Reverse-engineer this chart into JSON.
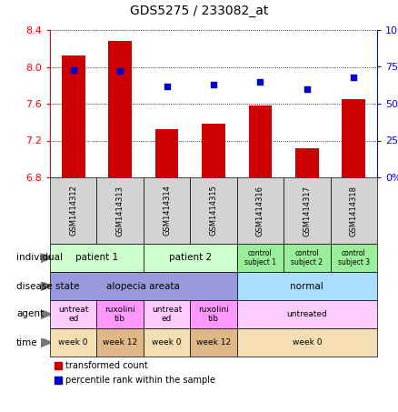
{
  "title": "GDS5275 / 233082_at",
  "samples": [
    "GSM1414312",
    "GSM1414313",
    "GSM1414314",
    "GSM1414315",
    "GSM1414316",
    "GSM1414317",
    "GSM1414318"
  ],
  "bar_values": [
    8.12,
    8.28,
    7.32,
    7.38,
    7.58,
    7.12,
    7.65
  ],
  "dot_values": [
    73,
    72,
    62,
    63,
    65,
    60,
    68
  ],
  "ylim_left": [
    6.8,
    8.4
  ],
  "ylim_right": [
    0,
    100
  ],
  "yticks_left": [
    6.8,
    7.2,
    7.6,
    8.0,
    8.4
  ],
  "yticks_right": [
    0,
    25,
    50,
    75,
    100
  ],
  "bar_color": "#cc0000",
  "dot_color": "#0000cc",
  "bar_width": 0.5,
  "sample_box_color": "#d3d3d3",
  "annotation_rows": [
    {
      "label": "individual",
      "cells": [
        {
          "text": "patient 1",
          "span": [
            0,
            1
          ],
          "color": "#ccffcc",
          "fontsize": 7.5
        },
        {
          "text": "patient 2",
          "span": [
            2,
            3
          ],
          "color": "#ccffcc",
          "fontsize": 7.5
        },
        {
          "text": "control\nsubject 1",
          "span": [
            4,
            4
          ],
          "color": "#99ee99",
          "fontsize": 5.5
        },
        {
          "text": "control\nsubject 2",
          "span": [
            5,
            5
          ],
          "color": "#99ee99",
          "fontsize": 5.5
        },
        {
          "text": "control\nsubject 3",
          "span": [
            6,
            6
          ],
          "color": "#99ee99",
          "fontsize": 5.5
        }
      ]
    },
    {
      "label": "disease state",
      "cells": [
        {
          "text": "alopecia areata",
          "span": [
            0,
            3
          ],
          "color": "#9999dd",
          "fontsize": 7.5
        },
        {
          "text": "normal",
          "span": [
            4,
            6
          ],
          "color": "#aaddff",
          "fontsize": 7.5
        }
      ]
    },
    {
      "label": "agent",
      "cells": [
        {
          "text": "untreat\ned",
          "span": [
            0,
            0
          ],
          "color": "#ffccff",
          "fontsize": 6.5
        },
        {
          "text": "ruxolini\ntib",
          "span": [
            1,
            1
          ],
          "color": "#ff99ff",
          "fontsize": 6.5
        },
        {
          "text": "untreat\ned",
          "span": [
            2,
            2
          ],
          "color": "#ffccff",
          "fontsize": 6.5
        },
        {
          "text": "ruxolini\ntib",
          "span": [
            3,
            3
          ],
          "color": "#ff99ff",
          "fontsize": 6.5
        },
        {
          "text": "untreated",
          "span": [
            4,
            6
          ],
          "color": "#ffccff",
          "fontsize": 6.5
        }
      ]
    },
    {
      "label": "time",
      "cells": [
        {
          "text": "week 0",
          "span": [
            0,
            0
          ],
          "color": "#f5deb3",
          "fontsize": 6.5
        },
        {
          "text": "week 12",
          "span": [
            1,
            1
          ],
          "color": "#deb887",
          "fontsize": 6.5
        },
        {
          "text": "week 0",
          "span": [
            2,
            2
          ],
          "color": "#f5deb3",
          "fontsize": 6.5
        },
        {
          "text": "week 12",
          "span": [
            3,
            3
          ],
          "color": "#deb887",
          "fontsize": 6.5
        },
        {
          "text": "week 0",
          "span": [
            4,
            6
          ],
          "color": "#f5deb3",
          "fontsize": 6.5
        }
      ]
    }
  ],
  "legend": [
    {
      "color": "#cc0000",
      "label": "transformed count"
    },
    {
      "color": "#0000cc",
      "label": "percentile rank within the sample"
    }
  ],
  "fig_width": 4.38,
  "fig_height": 4.53,
  "dpi": 100
}
